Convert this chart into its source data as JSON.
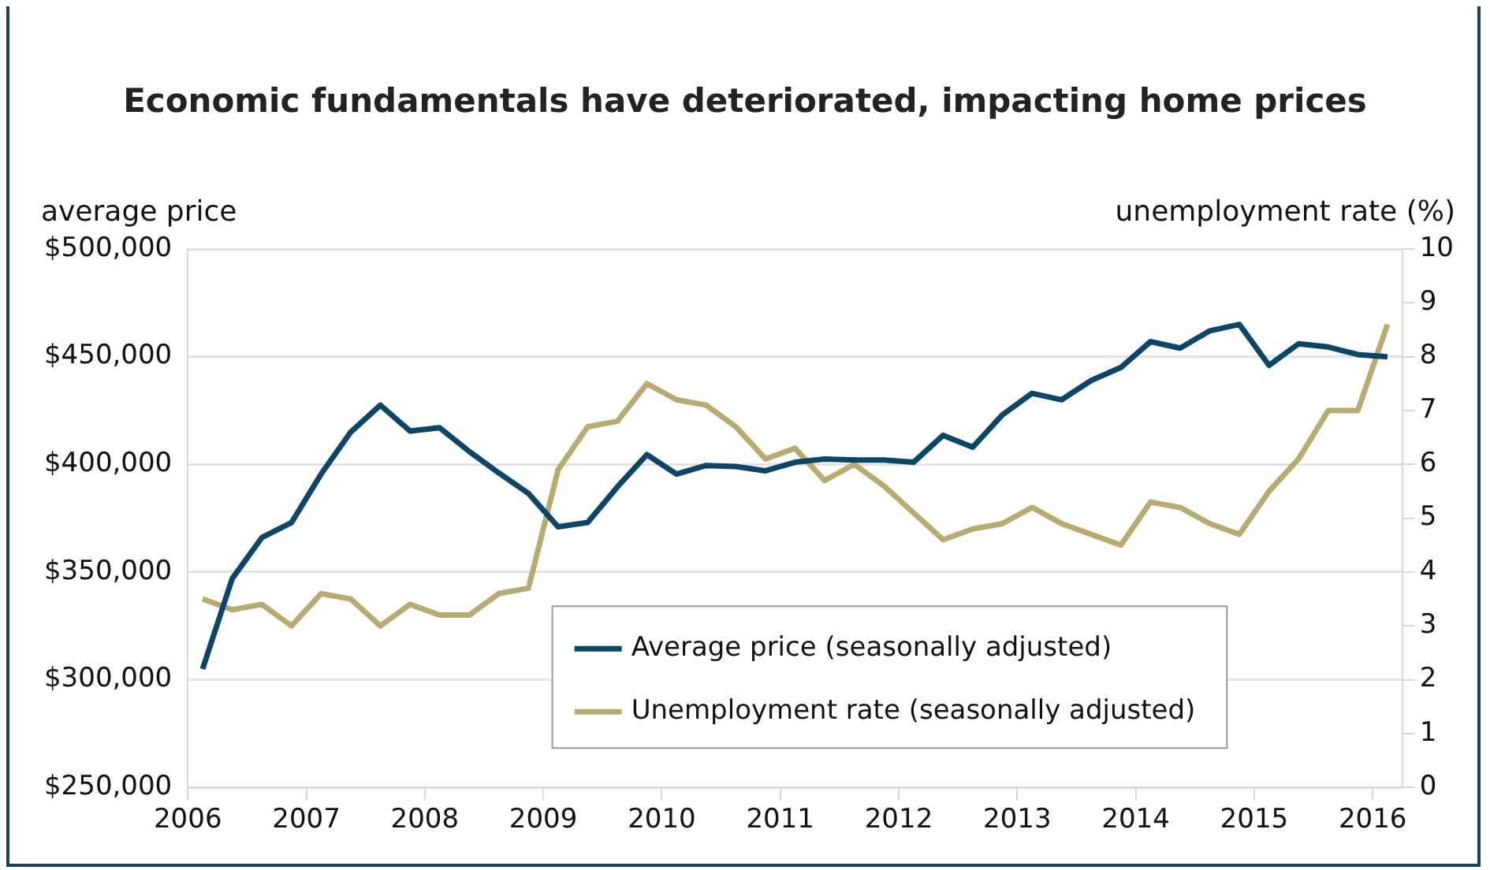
{
  "chart_data": {
    "type": "line",
    "title": "Economic fundamentals have deteriorated, impacting home prices",
    "ylabel": "average price",
    "y2label": "unemployment rate (%)",
    "x": [
      2006.125,
      2006.375,
      2006.625,
      2006.875,
      2007.125,
      2007.375,
      2007.625,
      2007.875,
      2008.125,
      2008.375,
      2008.625,
      2008.875,
      2009.125,
      2009.375,
      2009.625,
      2009.875,
      2010.125,
      2010.375,
      2010.625,
      2010.875,
      2011.125,
      2011.375,
      2011.625,
      2011.875,
      2012.125,
      2012.375,
      2012.625,
      2012.875,
      2013.125,
      2013.375,
      2013.625,
      2013.875,
      2014.125,
      2014.375,
      2014.625,
      2014.875,
      2015.125,
      2015.375,
      2015.625,
      2015.875,
      2016.125
    ],
    "series": [
      {
        "name": "Average price (seasonally adjusted)",
        "color": "#0d4566",
        "values": [
          305000,
          347000,
          366000,
          373000,
          395500,
          415000,
          427500,
          415500,
          417000,
          406000,
          396000,
          386500,
          371000,
          373000,
          389500,
          404500,
          395500,
          399500,
          399000,
          397000,
          401000,
          402500,
          402000,
          402000,
          401000,
          413500,
          408000,
          423000,
          433000,
          430000,
          439000,
          445000,
          457000,
          454000,
          462000,
          465000,
          446000,
          456000,
          454500,
          451000,
          450000
        ]
      },
      {
        "name": "Unemployment rate (seasonally adjusted)",
        "color": "#b8ab72",
        "axis": "y2",
        "values": [
          3.5,
          3.3,
          3.4,
          3.0,
          3.6,
          3.5,
          3.0,
          3.4,
          3.2,
          3.2,
          3.6,
          3.7,
          5.9,
          6.7,
          6.8,
          7.5,
          7.2,
          7.1,
          6.7,
          6.1,
          6.3,
          5.7,
          6.0,
          5.6,
          5.1,
          4.6,
          4.8,
          4.9,
          5.2,
          4.9,
          4.7,
          4.5,
          5.3,
          5.2,
          4.9,
          4.7,
          5.5,
          6.1,
          7.0,
          7.0,
          8.6
        ]
      }
    ],
    "xlim": [
      2006,
      2016.25
    ],
    "xticks": [
      2006,
      2007,
      2008,
      2009,
      2010,
      2011,
      2012,
      2013,
      2014,
      2015,
      2016
    ],
    "ylim": [
      250000,
      500000
    ],
    "yticks": [
      {
        "value": 250000,
        "label": "$250,000"
      },
      {
        "value": 300000,
        "label": "$300,000"
      },
      {
        "value": 350000,
        "label": "$350,000"
      },
      {
        "value": 400000,
        "label": "$400,000"
      },
      {
        "value": 450000,
        "label": "$450,000"
      },
      {
        "value": 500000,
        "label": "$500,000"
      }
    ],
    "y2lim": [
      0,
      10
    ],
    "y2ticks": [
      0,
      1,
      2,
      3,
      4,
      5,
      6,
      7,
      8,
      9,
      10
    ],
    "grid": "y",
    "legend": "bottom"
  }
}
